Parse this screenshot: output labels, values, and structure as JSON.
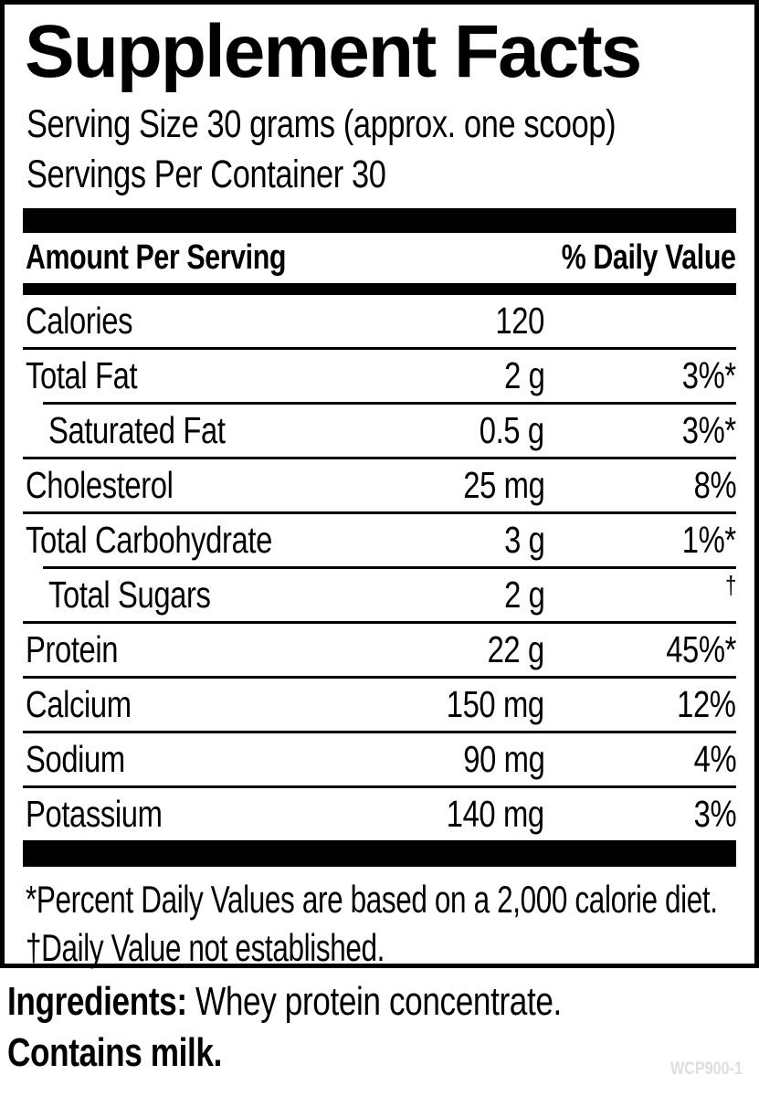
{
  "colors": {
    "text": "#000000",
    "background": "#ffffff",
    "product_code": "#dedede"
  },
  "label": {
    "title": "Supplement Facts",
    "serving_size": "Serving Size 30 grams (approx. one scoop)",
    "servings_per_container": "Servings Per Container 30",
    "header": {
      "amount_per_serving": "Amount Per Serving",
      "daily_value": "% Daily Value"
    },
    "rows": [
      {
        "name": "Calories",
        "amount": "120",
        "dv": "",
        "indent": false
      },
      {
        "name": "Total Fat",
        "amount": "2 g",
        "dv": "3%*",
        "indent": false
      },
      {
        "name": "Saturated Fat",
        "amount": "0.5 g",
        "dv": "3%*",
        "indent": true
      },
      {
        "name": "Cholesterol",
        "amount": "25 mg",
        "dv": "8%",
        "indent": false
      },
      {
        "name": "Total Carbohydrate",
        "amount": "3 g",
        "dv": "1%*",
        "indent": false
      },
      {
        "name": "Total Sugars",
        "amount": "2 g",
        "dv": "†",
        "indent": true
      },
      {
        "name": "Protein",
        "amount": "22 g",
        "dv": "45%*",
        "indent": false
      },
      {
        "name": "Calcium",
        "amount": "150 mg",
        "dv": "12%",
        "indent": false
      },
      {
        "name": "Sodium",
        "amount": "90 mg",
        "dv": "4%",
        "indent": false
      },
      {
        "name": "Potassium",
        "amount": "140 mg",
        "dv": "3%",
        "indent": false
      }
    ],
    "footnotes": [
      "*Percent Daily Values are based on a 2,000 calorie diet.",
      "†Daily Value not established."
    ]
  },
  "below": {
    "ingredients_label": "Ingredients:",
    "ingredients_text": " Whey protein concentrate.",
    "contains": "Contains milk.",
    "product_code": "WCP900-1"
  }
}
